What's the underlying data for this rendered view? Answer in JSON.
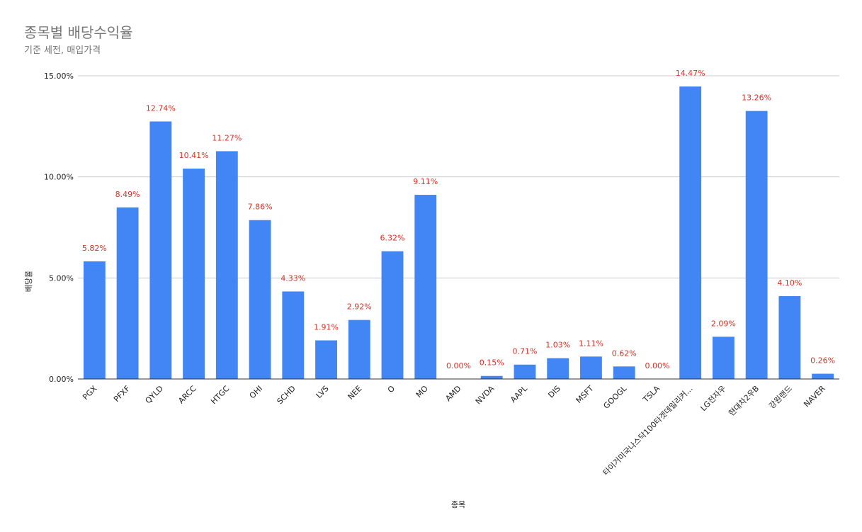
{
  "chart_data": {
    "type": "bar",
    "title": "종목별 배당수익율",
    "subtitle": "기준 세전, 매입가격",
    "xlabel": "종목",
    "ylabel": "배당율",
    "ylim": [
      0,
      15
    ],
    "yticks": [
      "0.00%",
      "5.00%",
      "10.00%",
      "15.00%"
    ],
    "grid": true,
    "bar_color": "#4285f4",
    "label_color": "#d93025",
    "categories": [
      "PGX",
      "PFXF",
      "QYLD",
      "ARCC",
      "HTGC",
      "OHI",
      "SCHD",
      "LVS",
      "NEE",
      "O",
      "MO",
      "AMD",
      "NVDA",
      "AAPL",
      "DIS",
      "MSFT",
      "GOOGL",
      "TSLA",
      "타이거미국나스닥100타겟데일리커…",
      "LG전자우",
      "현대차2우B",
      "강원랜드",
      "NAVER"
    ],
    "values": [
      5.82,
      8.49,
      12.74,
      10.41,
      11.27,
      7.86,
      4.33,
      1.91,
      2.92,
      6.32,
      9.11,
      0.0,
      0.15,
      0.71,
      1.03,
      1.11,
      0.62,
      0.0,
      14.47,
      2.09,
      13.26,
      4.1,
      0.26
    ],
    "labels": [
      "5.82%",
      "8.49%",
      "12.74%",
      "10.41%",
      "11.27%",
      "7.86%",
      "4.33%",
      "1.91%",
      "2.92%",
      "6.32%",
      "9.11%",
      "0.00%",
      "0.15%",
      "0.71%",
      "1.03%",
      "1.11%",
      "0.62%",
      "0.00%",
      "14.47%",
      "2.09%",
      "13.26%",
      "4.10%",
      "0.26%"
    ]
  }
}
